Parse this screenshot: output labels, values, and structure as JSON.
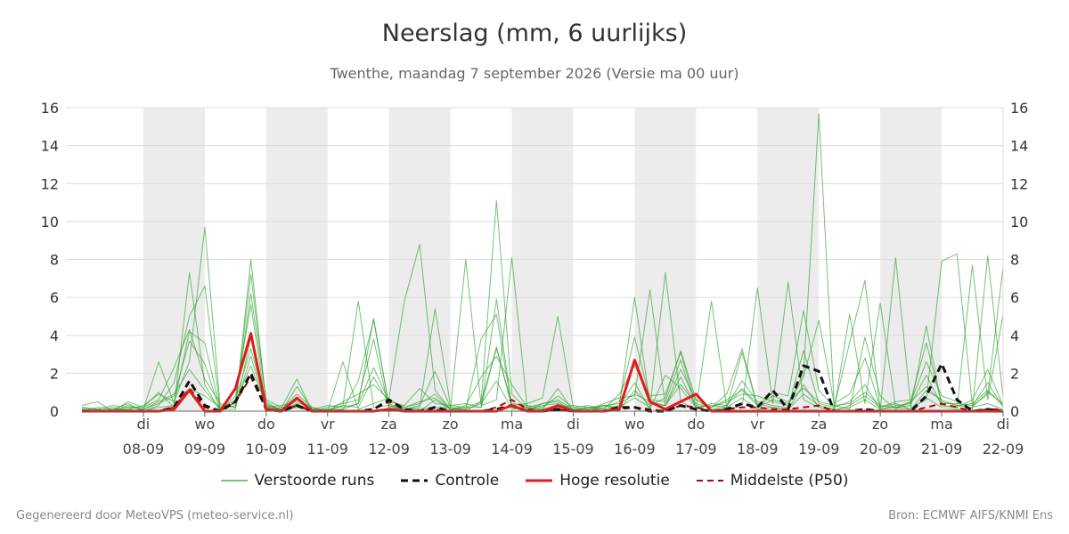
{
  "title": "Neerslag (mm, 6 uurlijks)",
  "subtitle": "Twenthe, maandag  7 september 2026 (Versie ma 00 uur)",
  "footer": {
    "left": "Gegenereerd door MeteoVPS (meteo-service.nl)",
    "right": "Bron: ECMWF AIFS/KNMI Ens"
  },
  "colors": {
    "ensemble": "#2ca02c",
    "control": "#111111",
    "high_res": "#e31a1c",
    "median": "#b30000",
    "weekend_band": "#ececec",
    "grid": "#dcdcdc"
  },
  "legend": [
    {
      "label": "Verstoorde runs",
      "style": "ensemble"
    },
    {
      "label": "Controle",
      "style": "control"
    },
    {
      "label": "Hoge resolutie",
      "style": "high_res"
    },
    {
      "label": "Middelste (P50)",
      "style": "median"
    }
  ],
  "chart_data": {
    "type": "line",
    "title": "Neerslag (mm, 6 uurlijks)",
    "ylim": [
      0,
      16
    ],
    "yticks": [
      0,
      2,
      4,
      6,
      8,
      10,
      12,
      14,
      16
    ],
    "x_unit": "days since 2026-09-07 00:00 (6-hourly steps)",
    "xlim": [
      0,
      15
    ],
    "xticks": [
      {
        "x": 1,
        "day": "di",
        "date": "08-09"
      },
      {
        "x": 2,
        "day": "wo",
        "date": "09-09"
      },
      {
        "x": 3,
        "day": "do",
        "date": "10-09"
      },
      {
        "x": 4,
        "day": "vr",
        "date": "11-09"
      },
      {
        "x": 5,
        "day": "za",
        "date": "12-09"
      },
      {
        "x": 6,
        "day": "zo",
        "date": "13-09"
      },
      {
        "x": 7,
        "day": "ma",
        "date": "14-09"
      },
      {
        "x": 8,
        "day": "di",
        "date": "15-09"
      },
      {
        "x": 9,
        "day": "wo",
        "date": "16-09"
      },
      {
        "x": 10,
        "day": "do",
        "date": "17-09"
      },
      {
        "x": 11,
        "day": "vr",
        "date": "18-09"
      },
      {
        "x": 12,
        "day": "za",
        "date": "19-09"
      },
      {
        "x": 13,
        "day": "zo",
        "date": "20-09"
      },
      {
        "x": 14,
        "day": "ma",
        "date": "21-09"
      },
      {
        "x": 15,
        "day": "di",
        "date": "22-09"
      }
    ],
    "shaded_bands": [
      [
        1,
        2
      ],
      [
        3,
        4
      ],
      [
        5,
        6
      ],
      [
        7,
        8
      ],
      [
        9,
        10
      ],
      [
        11,
        12
      ],
      [
        13,
        14
      ]
    ],
    "x": [
      0,
      0.25,
      0.5,
      0.75,
      1,
      1.25,
      1.5,
      1.75,
      2,
      2.25,
      2.5,
      2.75,
      3,
      3.25,
      3.5,
      3.75,
      4,
      4.25,
      4.5,
      4.75,
      5,
      5.25,
      5.5,
      5.75,
      6,
      6.25,
      6.5,
      6.75,
      7,
      7.25,
      7.5,
      7.75,
      8,
      8.25,
      8.5,
      8.75,
      9,
      9.25,
      9.5,
      9.75,
      10,
      10.25,
      10.5,
      10.75,
      11,
      11.25,
      11.5,
      11.75,
      12,
      12.25,
      12.5,
      12.75,
      13,
      13.25,
      13.5,
      13.75,
      14,
      14.25,
      14.5,
      14.75,
      15
    ],
    "series": [
      {
        "name": "Controle",
        "style": "control",
        "values": [
          0,
          0,
          0,
          0,
          0,
          0,
          0.2,
          1.6,
          0.3,
          0,
          0.5,
          2.0,
          0.1,
          0,
          0.3,
          0,
          0,
          0,
          0,
          0.1,
          0.6,
          0.1,
          0,
          0.2,
          0,
          0,
          0,
          0.1,
          0.3,
          0,
          0,
          0.1,
          0,
          0,
          0,
          0.2,
          0.2,
          0,
          0,
          0.3,
          0.1,
          0,
          0.1,
          0.4,
          0.2,
          1.1,
          0.1,
          2.4,
          2.1,
          0,
          0,
          0.1,
          0,
          0,
          0,
          0.8,
          2.5,
          0.6,
          0,
          0.1,
          0
        ]
      },
      {
        "name": "Hoge resolutie",
        "style": "high_res",
        "values": [
          0,
          0,
          0,
          0,
          0,
          0,
          0.1,
          1.1,
          0,
          0,
          1.2,
          4.1,
          0.1,
          0,
          0.7,
          0,
          0,
          0,
          0,
          0,
          0.1,
          0,
          0,
          0,
          0,
          0,
          0,
          0,
          0.3,
          0,
          0,
          0.3,
          0,
          0,
          0,
          0.1,
          2.7,
          0.5,
          0.1,
          0.5,
          0.9,
          0,
          0,
          0,
          0,
          0,
          0,
          0,
          0,
          0,
          0,
          0,
          0,
          0,
          0,
          0,
          0,
          0,
          0,
          0,
          0
        ]
      },
      {
        "name": "Middelste (P50)",
        "style": "median",
        "values": [
          0,
          0,
          0,
          0,
          0,
          0,
          0.2,
          1.2,
          0.2,
          0,
          0.5,
          1.8,
          0.1,
          0,
          0.3,
          0,
          0,
          0,
          0,
          0.1,
          0.5,
          0.1,
          0,
          0.1,
          0,
          0,
          0,
          0.2,
          0.6,
          0.1,
          0,
          0.1,
          0,
          0,
          0,
          0.1,
          0.2,
          0.1,
          0,
          0.3,
          0.2,
          0,
          0.1,
          0.2,
          0.2,
          0.1,
          0.1,
          0.2,
          0.3,
          0,
          0,
          0.1,
          0,
          0,
          0,
          0.2,
          0.4,
          0.2,
          0,
          0.1,
          0.1
        ]
      },
      {
        "name": "Verstoorde runs",
        "style": "ensemble",
        "values": [
          0.3,
          0.5,
          0,
          0.2,
          0.1,
          2.6,
          0.4,
          4.2,
          3.6,
          0.1,
          0.3,
          7.2,
          0.5,
          0,
          1.3,
          0.1,
          0,
          0.3,
          0.2,
          1.8,
          0.4,
          0,
          0,
          0.6,
          0.1,
          0.2,
          0.2,
          3.4,
          0.2,
          0,
          0.4,
          0.5,
          0,
          0,
          0.3,
          0.1,
          1.1,
          0.3,
          0.7,
          3.2,
          0.6,
          0.1,
          0.3,
          1.2,
          0.4,
          0.2,
          0.1,
          1.4,
          0.2,
          0,
          0.3,
          0.8,
          0.2,
          0.4,
          0.1,
          1.1,
          0.6,
          0.3,
          0.2,
          1.0,
          0.4
        ]
      },
      {
        "name": "Verstoorde runs",
        "style": "ensemble",
        "values": [
          0.1,
          0,
          0,
          0.5,
          0.2,
          1.0,
          0.2,
          7.3,
          1.4,
          0,
          0.8,
          5.6,
          0.2,
          0.1,
          0.4,
          0,
          0,
          0.1,
          0.4,
          4.9,
          0.2,
          0.1,
          0.3,
          2.1,
          0.2,
          0,
          0.5,
          11.1,
          0.9,
          0.1,
          0.1,
          1.2,
          0,
          0.2,
          0,
          0.3,
          6.0,
          0.4,
          0.3,
          1.8,
          0.2,
          0,
          0.2,
          3.1,
          0.2,
          0.6,
          0.4,
          2.0,
          15.7,
          0.3,
          0.1,
          3.9,
          0.8,
          0.1,
          0.5,
          2.6,
          0.8,
          0.5,
          0.1,
          8.2,
          0.7
        ]
      },
      {
        "name": "Verstoorde runs",
        "style": "ensemble",
        "values": [
          0.2,
          0.1,
          0,
          0.1,
          0.3,
          0.9,
          0.5,
          2.6,
          9.7,
          0.3,
          0.2,
          8.0,
          0.4,
          0,
          0.6,
          0.2,
          0,
          2.6,
          0.1,
          0.4,
          0.7,
          5.8,
          8.8,
          1.1,
          0.1,
          8.0,
          0.3,
          0.6,
          8.1,
          0.2,
          0.1,
          0.3,
          0.1,
          0.1,
          0.4,
          0.7,
          0.8,
          6.4,
          0.3,
          2.2,
          0.6,
          0.2,
          0.9,
          3.3,
          0.3,
          1.0,
          0.8,
          5.3,
          1.1,
          0.2,
          3.6,
          6.9,
          0.1,
          8.1,
          0.2,
          0.6,
          7.9,
          8.3,
          0.3,
          0.9,
          7.6
        ]
      },
      {
        "name": "Verstoorde runs",
        "style": "ensemble",
        "values": [
          0,
          0.2,
          0.1,
          0.4,
          0,
          0.3,
          1.5,
          5.0,
          6.6,
          0.1,
          0.1,
          3.9,
          0.1,
          0.2,
          1.7,
          0,
          0.1,
          0.3,
          5.8,
          0.2,
          0.3,
          0.1,
          0.2,
          5.4,
          0.3,
          0.4,
          0.2,
          5.9,
          0.3,
          0.4,
          0.7,
          5.0,
          0.2,
          0.1,
          0.3,
          0.2,
          0.7,
          0.2,
          7.3,
          0.5,
          0.1,
          5.8,
          0.2,
          0.2,
          6.5,
          0.4,
          6.8,
          0.6,
          0.2,
          0.1,
          5.1,
          0.4,
          5.7,
          0.2,
          0.3,
          4.5,
          0.3,
          0.2,
          7.7,
          0.6,
          5.1
        ]
      },
      {
        "name": "Verstoorde runs",
        "style": "ensemble",
        "values": [
          0.1,
          0,
          0.2,
          0,
          0.1,
          0.4,
          0.8,
          3.7,
          2.5,
          0,
          0.5,
          2.4,
          0.3,
          0.1,
          0.2,
          0,
          0.2,
          0.4,
          0.6,
          3.8,
          0.1,
          0.2,
          0.4,
          0.9,
          0.1,
          0.1,
          3.8,
          5.1,
          0.2,
          0.1,
          0.3,
          0.4,
          0.1,
          0,
          0.2,
          0.5,
          3.9,
          0.6,
          0.5,
          2.7,
          0.1,
          0.4,
          0.3,
          1.6,
          0.5,
          0.3,
          0.2,
          3.2,
          0.4,
          0.2,
          0.5,
          1.4,
          0.1,
          0.3,
          0.4,
          1.9,
          0.3,
          0.2,
          0.6,
          2.2,
          0.3
        ]
      },
      {
        "name": "Verstoorde runs",
        "style": "ensemble",
        "values": [
          0.2,
          0.1,
          0.3,
          0.2,
          0.2,
          0.6,
          2.3,
          4.3,
          1.7,
          0.4,
          0.2,
          2.9,
          0.2,
          0.3,
          0.5,
          0.1,
          0.3,
          0.2,
          0.4,
          2.3,
          0.5,
          0.3,
          1.2,
          0.4,
          0.3,
          0.2,
          0.5,
          3.3,
          0.4,
          0.3,
          0.2,
          0.8,
          0.2,
          0.3,
          0.1,
          0.9,
          2.4,
          0.8,
          0.9,
          3.1,
          0.3,
          0.2,
          0.5,
          0.9,
          0.8,
          0.5,
          0.3,
          1.8,
          4.8,
          0.4,
          0.9,
          2.8,
          0.2,
          0.5,
          0.6,
          3.6,
          0.4,
          0.4,
          0.3,
          1.5,
          0.2
        ]
      },
      {
        "name": "Verstoorde runs",
        "style": "ensemble",
        "values": [
          0,
          0,
          0.1,
          0.1,
          0,
          0.2,
          0.3,
          1.2,
          0.8,
          0.2,
          0.4,
          6.2,
          0.6,
          0.2,
          0.3,
          0.1,
          0.1,
          0.1,
          1.6,
          4.8,
          0.3,
          0.1,
          0.1,
          0.2,
          0.2,
          0.1,
          0.4,
          1.6,
          0.1,
          0.2,
          0.1,
          0.2,
          0.3,
          0.2,
          0.1,
          0.3,
          1.5,
          0.1,
          1.9,
          1.2,
          0.2,
          0.3,
          0.2,
          0.7,
          0.1,
          0.2,
          0.1,
          0.9,
          0.3,
          0.1,
          0.2,
          0.6,
          0.1,
          0.2,
          0.1,
          0.7,
          0.2,
          0.1,
          0.2,
          0.4,
          0.1
        ]
      },
      {
        "name": "Verstoorde runs",
        "style": "ensemble",
        "values": [
          0.1,
          0.1,
          0,
          0.3,
          0.1,
          0.5,
          0.9,
          2.2,
          1.1,
          0.1,
          0.6,
          3.3,
          0.3,
          0.1,
          0.9,
          0.2,
          0,
          0.5,
          0.9,
          1.4,
          0.6,
          0.2,
          0.5,
          0.7,
          0.1,
          0.3,
          1.8,
          2.9,
          1.4,
          0.2,
          0.4,
          0.6,
          0.1,
          0.2,
          0.3,
          0.4,
          0.9,
          0.5,
          0.3,
          1.4,
          0.4,
          0.2,
          0.6,
          1.1,
          0.3,
          0.8,
          0.5,
          1.2,
          0.5,
          0.3,
          0.4,
          1.0,
          0.3,
          0.2,
          0.5,
          1.3,
          0.5,
          0.3,
          0.4,
          1.1,
          0.3
        ]
      }
    ]
  }
}
